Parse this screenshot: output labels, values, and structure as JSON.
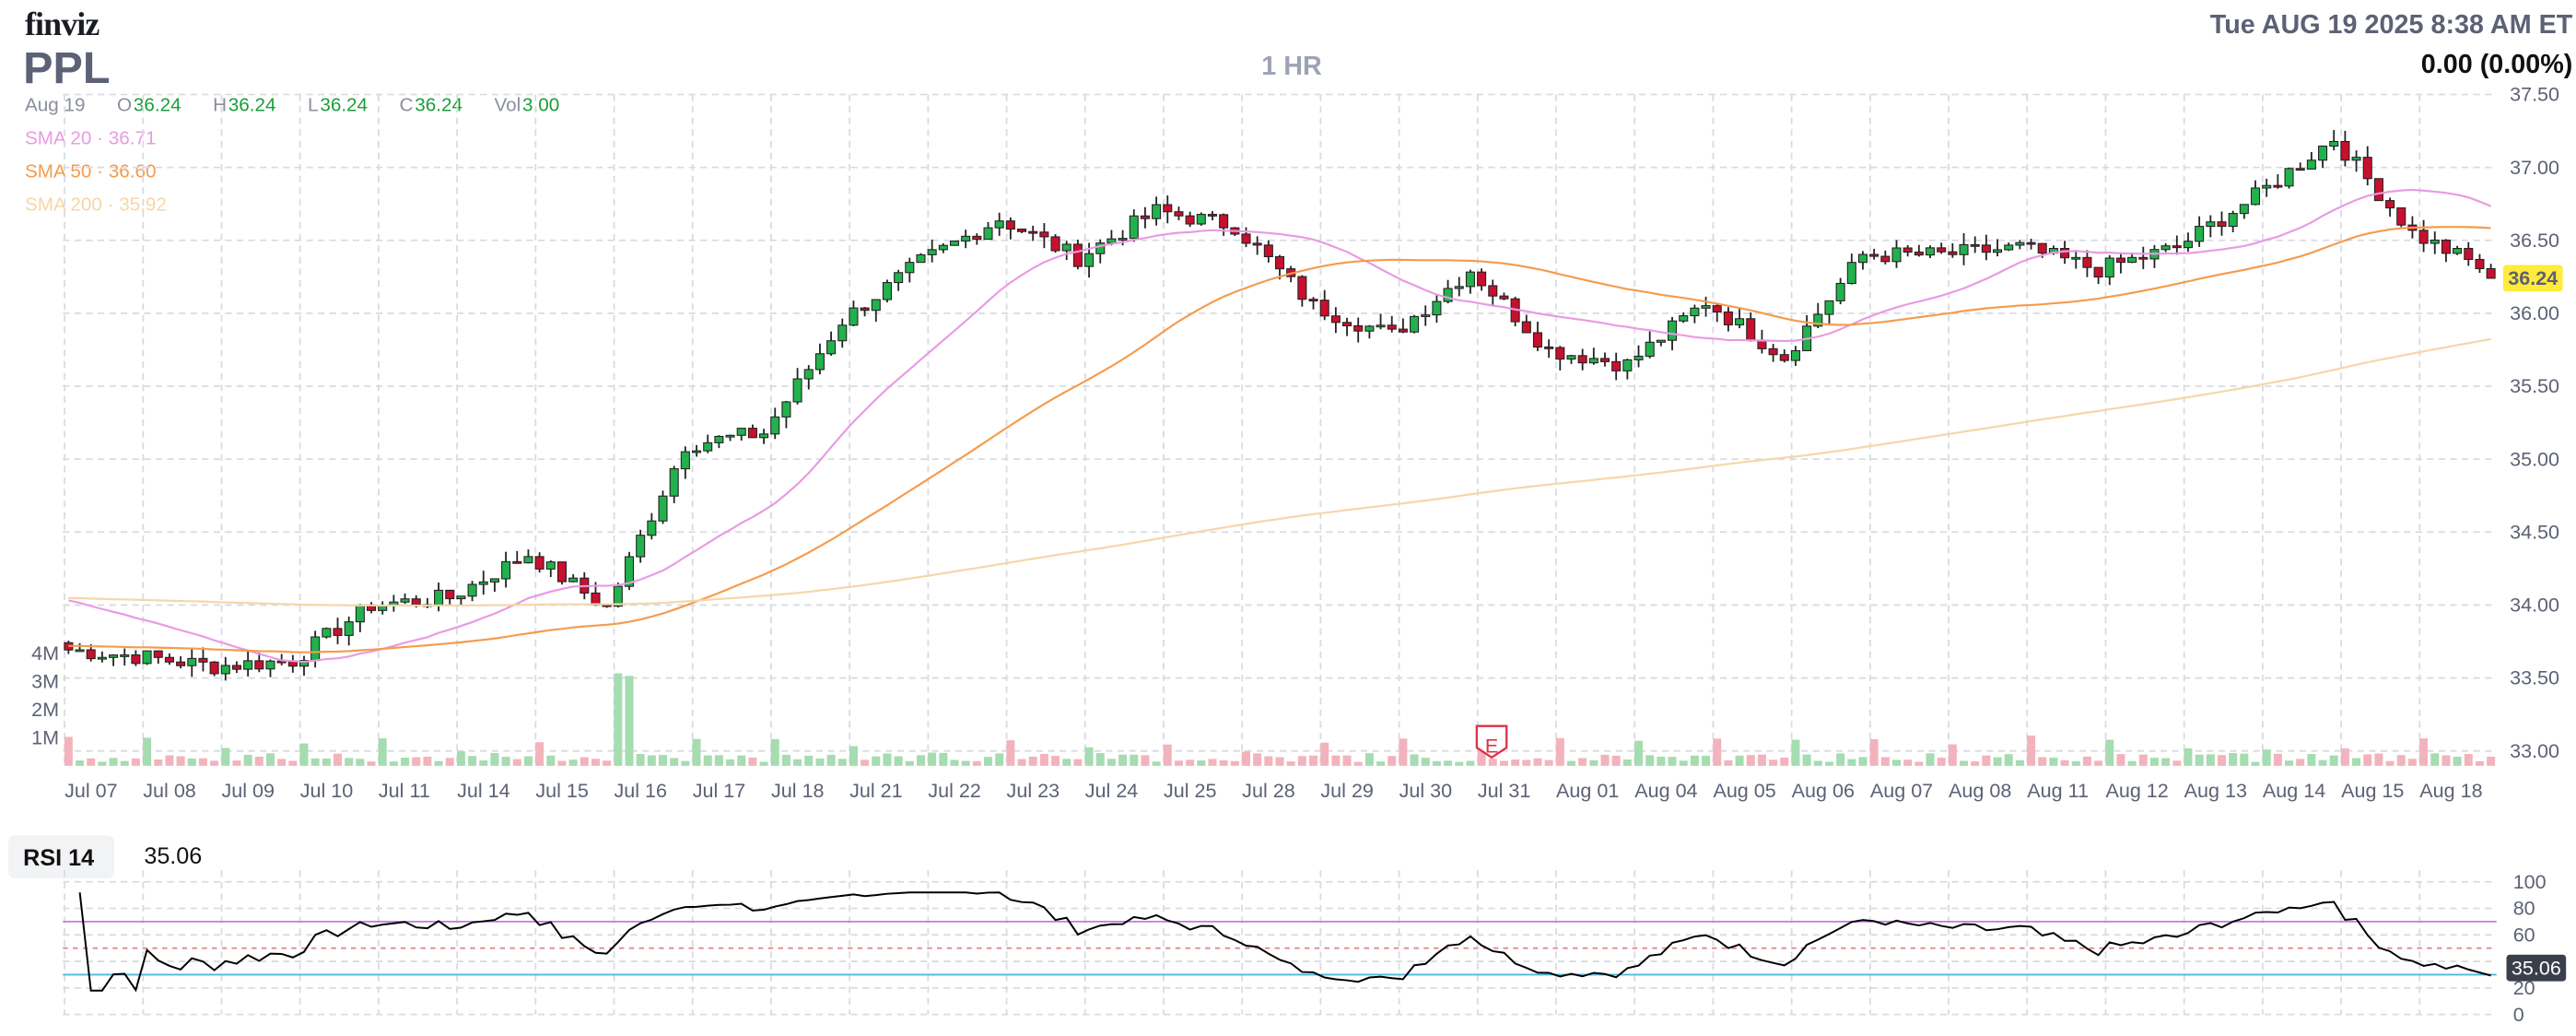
{
  "header": {
    "logo": "finviz",
    "ticker": "PPL",
    "timeframe": "1 HR",
    "datetime": "Tue AUG 19 2025 8:38 AM ET",
    "change": "0.00 (0.00%)"
  },
  "ohlc": {
    "date": "Aug 19",
    "open_label": "O",
    "open": "36.24",
    "high_label": "H",
    "high": "36.24",
    "low_label": "L",
    "low": "36.24",
    "close_label": "C",
    "close": "36.24",
    "vol_label": "Vol",
    "vol": "3.00"
  },
  "sma_legend": [
    {
      "label": "SMA 20",
      "value": "36.71",
      "color": "#e99ae3"
    },
    {
      "label": "SMA 50",
      "value": "36.60",
      "color": "#f59b4d"
    },
    {
      "label": "SMA 200",
      "value": "35.92",
      "color": "#f6d6a8"
    }
  ],
  "rsi": {
    "label": "RSI 14",
    "value": "35.06",
    "overbought": 70,
    "oversold": 30,
    "ticks": [
      "100",
      "80",
      "60",
      "40",
      "20",
      "0"
    ]
  },
  "colors": {
    "up": "#22b14c",
    "down": "#c8102e",
    "vol_up": "#a5dcb0",
    "vol_down": "#f3b3bd",
    "last_price_bg": "#ffeb3b",
    "rsi_line": "#000000",
    "overbought_line": "#c27be0",
    "oversold_line": "#4fb8d8"
  },
  "earnings_marker": "E",
  "chart_data": {
    "type": "candlestick",
    "interval": "1 HR",
    "last_price": "36.24",
    "y_ticks": [
      "37.50",
      "37.00",
      "36.50",
      "36.00",
      "35.50",
      "35.00",
      "34.50",
      "34.00",
      "33.50",
      "33.00"
    ],
    "ylim": [
      33.0,
      37.5
    ],
    "volume_ticks": [
      "4M",
      "3M",
      "2M",
      "1M"
    ],
    "x_labels": [
      "Jul 07",
      "Jul 08",
      "Jul 09",
      "Jul 10",
      "Jul 11",
      "Jul 14",
      "Jul 15",
      "Jul 16",
      "Jul 17",
      "Jul 18",
      "Jul 21",
      "Jul 22",
      "Jul 23",
      "Jul 24",
      "Jul 25",
      "Jul 28",
      "Jul 29",
      "Jul 30",
      "Jul 31",
      "Aug 01",
      "Aug 04",
      "Aug 05",
      "Aug 06",
      "Aug 07",
      "Aug 08",
      "Aug 11",
      "Aug 12",
      "Aug 13",
      "Aug 14",
      "Aug 15",
      "Aug 18"
    ],
    "daily_close": [
      33.65,
      33.58,
      33.62,
      34.0,
      34.05,
      34.35,
      33.98,
      35.1,
      35.18,
      35.95,
      36.35,
      36.65,
      36.38,
      36.7,
      36.6,
      36.05,
      35.85,
      36.3,
      35.75,
      35.65,
      36.08,
      35.7,
      36.4,
      36.4,
      36.45,
      36.3,
      36.45,
      36.8,
      37.2,
      36.55,
      36.28
    ],
    "sma_20": {
      "start": 34.05,
      "end": 36.71
    },
    "sma_50": {
      "start": 33.72,
      "end": 36.6
    },
    "sma_200": {
      "start": 34.05,
      "end": 35.92
    }
  }
}
